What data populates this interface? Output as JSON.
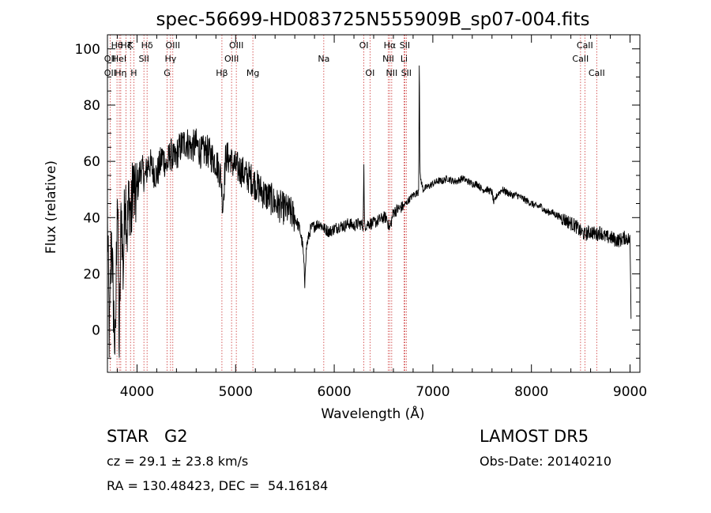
{
  "chart_data": {
    "type": "line",
    "title": "spec-56699-HD083725N555909B_sp07-004.fits",
    "xlabel": "Wavelength (Å)",
    "ylabel": "Flux (relative)",
    "xlim": [
      3700,
      9100
    ],
    "ylim": [
      -15,
      105
    ],
    "xticks": [
      4000,
      5000,
      6000,
      7000,
      8000,
      9000
    ],
    "yticks": [
      0,
      20,
      40,
      60,
      80,
      100
    ],
    "line_color": "#000000",
    "marker_color": "#cc3333",
    "series": [
      {
        "x": [
          3700,
          3720,
          3740,
          3760,
          3780,
          3800,
          3820,
          3840,
          3860,
          3880,
          3900,
          3920,
          3940,
          3960,
          3980,
          4000,
          4040,
          4080,
          4120,
          4160,
          4200,
          4260,
          4300,
          4340,
          4380,
          4420,
          4460,
          4500,
          4550,
          4600,
          4650,
          4700,
          4750,
          4800,
          4850,
          4870,
          4900,
          4950,
          5000,
          5050,
          5100,
          5150,
          5200,
          5250,
          5300,
          5350,
          5400,
          5450,
          5500,
          5550,
          5600,
          5650,
          5680,
          5700,
          5720,
          5760,
          5800,
          5850,
          5900,
          5950,
          6000,
          6050,
          6100,
          6150,
          6200,
          6250,
          6300,
          6350,
          6400,
          6450,
          6500,
          6530,
          6563,
          6600,
          6650,
          6700,
          6750,
          6800,
          6850,
          6870,
          6900,
          6950,
          7000,
          7050,
          7100,
          7150,
          7200,
          7250,
          7300,
          7350,
          7400,
          7450,
          7500,
          7550,
          7600,
          7620,
          7650,
          7700,
          7750,
          7800,
          7850,
          7900,
          7950,
          8000,
          8050,
          8100,
          8150,
          8200,
          8250,
          8300,
          8350,
          8400,
          8450,
          8498,
          8542,
          8600,
          8662,
          8700,
          8750,
          8800,
          8850,
          8900,
          8950,
          9000,
          9010
        ],
        "y": [
          40,
          -5,
          35,
          10,
          -10,
          55,
          -8,
          45,
          20,
          52,
          35,
          48,
          38,
          55,
          45,
          50,
          58,
          54,
          60,
          57,
          55,
          62,
          58,
          63,
          60,
          64,
          66,
          67,
          65,
          66,
          63,
          64,
          62,
          60,
          55,
          44,
          62,
          60,
          58,
          57,
          55,
          54,
          52,
          50,
          48,
          47,
          45,
          44,
          43,
          42,
          40,
          36,
          30,
          20,
          30,
          36,
          37,
          38,
          36,
          35,
          36,
          37,
          37,
          38,
          37,
          38,
          37,
          38,
          38,
          39,
          40,
          40,
          36,
          42,
          43,
          44,
          46,
          48,
          49,
          55,
          50,
          51,
          52,
          53,
          53,
          54,
          53,
          53,
          54,
          53,
          52,
          52,
          50,
          50,
          49,
          45,
          48,
          50,
          49,
          48,
          48,
          47,
          46,
          45,
          44,
          44,
          42,
          42,
          41,
          40,
          39,
          38,
          37,
          35,
          34,
          35,
          34,
          35,
          33,
          33,
          32,
          32,
          33,
          32,
          5
        ]
      }
    ],
    "features": [
      {
        "x": 4950,
        "y": 62
      },
      {
        "x": 5700,
        "y": 14
      },
      {
        "x": 6300,
        "y": 62
      },
      {
        "x": 6863,
        "y": 104
      }
    ],
    "lines": [
      {
        "wave": 3727,
        "label": "OII",
        "row": 1
      },
      {
        "wave": 3727,
        "label": "OII",
        "row": 2
      },
      {
        "wave": 3797,
        "label": "Hθ",
        "row": 0
      },
      {
        "wave": 3820,
        "label": "HeI",
        "row": 1
      },
      {
        "wave": 3835,
        "label": "Hη",
        "row": 2
      },
      {
        "wave": 3889,
        "label": "Hζ",
        "row": 0
      },
      {
        "wave": 3934,
        "label": "K",
        "row": 0
      },
      {
        "wave": 3968,
        "label": "H",
        "row": 2
      },
      {
        "wave": 4070,
        "label": "SII",
        "row": 1
      },
      {
        "wave": 4102,
        "label": "Hδ",
        "row": 0
      },
      {
        "wave": 4305,
        "label": "G",
        "row": 2
      },
      {
        "wave": 4340,
        "label": "Hγ",
        "row": 1
      },
      {
        "wave": 4363,
        "label": "OIII",
        "row": 0
      },
      {
        "wave": 4861,
        "label": "Hβ",
        "row": 2
      },
      {
        "wave": 4959,
        "label": "OIII",
        "row": 1
      },
      {
        "wave": 5007,
        "label": "OIII",
        "row": 0
      },
      {
        "wave": 5175,
        "label": "Mg",
        "row": 2
      },
      {
        "wave": 5894,
        "label": "Na",
        "row": 1
      },
      {
        "wave": 6300,
        "label": "OI",
        "row": 0
      },
      {
        "wave": 6363,
        "label": "OI",
        "row": 2
      },
      {
        "wave": 6548,
        "label": "NII",
        "row": 1
      },
      {
        "wave": 6563,
        "label": "Hα",
        "row": 0
      },
      {
        "wave": 6583,
        "label": "NII",
        "row": 2
      },
      {
        "wave": 6708,
        "label": "Li",
        "row": 1
      },
      {
        "wave": 6716,
        "label": "SII",
        "row": 0
      },
      {
        "wave": 6731,
        "label": "SII",
        "row": 2
      },
      {
        "wave": 8498,
        "label": "CaII",
        "row": 1
      },
      {
        "wave": 8542,
        "label": "CaII",
        "row": 0
      },
      {
        "wave": 8662,
        "label": "CaII",
        "row": 2
      }
    ]
  },
  "footer": {
    "object_type": "STAR",
    "object_class": "G2",
    "survey": "LAMOST DR5",
    "velocity": "cz = 29.1 ± 23.8 km/s",
    "obs_date": "Obs-Date: 20140210",
    "coordinates": "RA = 130.48423, DEC =  54.16184"
  }
}
